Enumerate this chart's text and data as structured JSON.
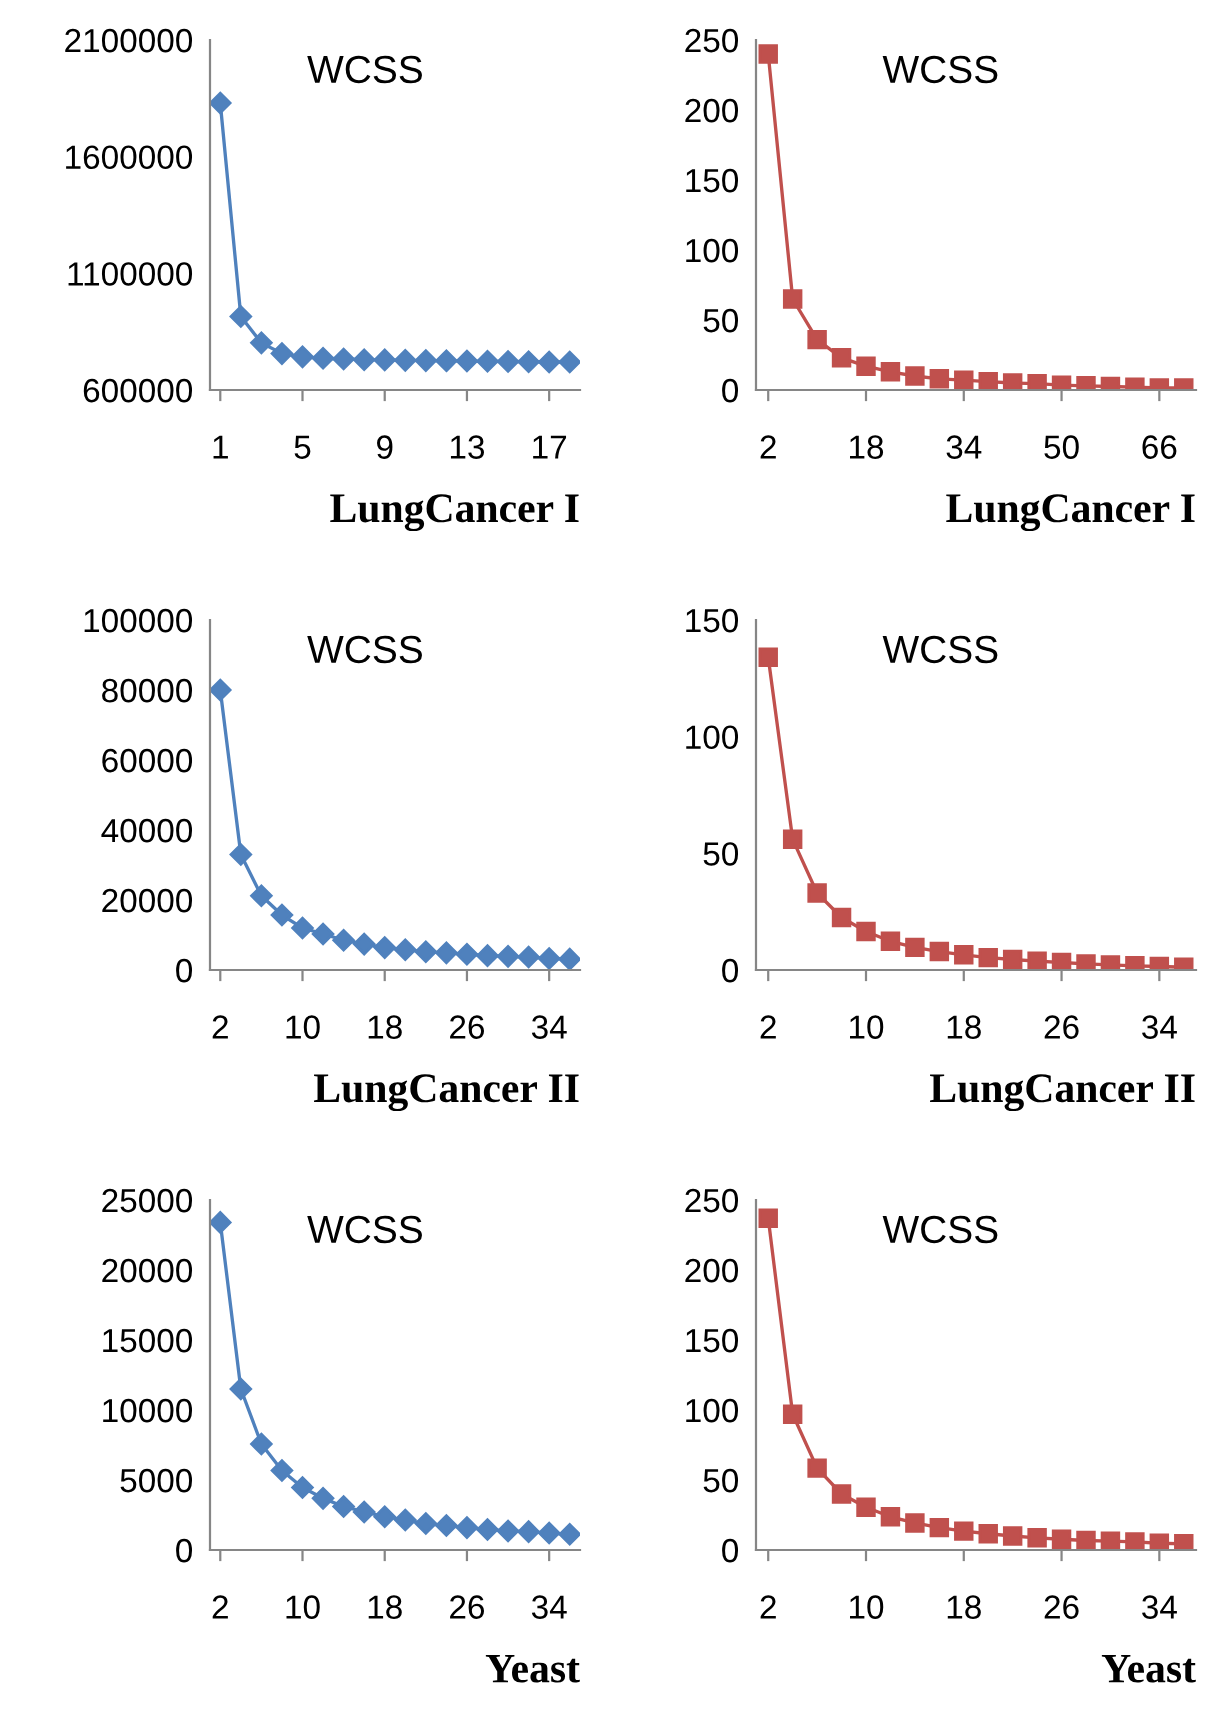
{
  "chart_data": [
    {
      "type": "line",
      "title": "WCSS",
      "xlabel": "LungCancer I",
      "categories": [
        "1",
        null,
        null,
        null,
        "5",
        null,
        null,
        null,
        "9",
        null,
        null,
        null,
        "13",
        null,
        null,
        null,
        "17",
        null
      ],
      "values": [
        1830000,
        915000,
        802000,
        756000,
        742000,
        736000,
        733000,
        730000,
        729000,
        727000,
        726000,
        725000,
        724000,
        723000,
        722000,
        721000,
        720000,
        720000
      ],
      "color": "#4f81bd",
      "marker": "diamond",
      "ylim": [
        600000,
        2100000
      ],
      "yticks": [
        600000,
        1100000,
        1600000,
        2100000
      ],
      "grid": false
    },
    {
      "type": "line",
      "title": "WCSS",
      "xlabel": "LungCancer I",
      "categories": [
        "2",
        null,
        null,
        null,
        "18",
        null,
        null,
        null,
        "34",
        null,
        null,
        null,
        "50",
        null,
        null,
        null,
        "66",
        null
      ],
      "values": [
        240,
        65,
        36,
        23,
        17,
        13,
        10,
        8,
        7,
        6,
        5,
        4.5,
        3.5,
        3,
        2.5,
        2,
        1.5,
        1.5
      ],
      "color": "#c0504d",
      "marker": "square",
      "ylim": [
        0,
        250
      ],
      "yticks": [
        0,
        50,
        100,
        150,
        200,
        250
      ],
      "grid": false
    },
    {
      "type": "line",
      "title": "WCSS",
      "xlabel": "LungCancer II",
      "categories": [
        "2",
        null,
        null,
        null,
        "10",
        null,
        null,
        null,
        "18",
        null,
        null,
        null,
        "26",
        null,
        null,
        null,
        "34",
        null
      ],
      "values": [
        80000,
        33000,
        21200,
        15700,
        12000,
        10300,
        8500,
        7400,
        6400,
        5800,
        5200,
        4900,
        4500,
        4100,
        3900,
        3700,
        3300,
        3100
      ],
      "color": "#4f81bd",
      "marker": "diamond",
      "ylim": [
        0,
        100000
      ],
      "yticks": [
        0,
        20000,
        40000,
        60000,
        80000,
        100000
      ],
      "grid": false
    },
    {
      "type": "line",
      "title": "WCSS",
      "xlabel": "LungCancer II",
      "categories": [
        "2",
        null,
        null,
        null,
        "10",
        null,
        null,
        null,
        "18",
        null,
        null,
        null,
        "26",
        null,
        null,
        null,
        "34",
        null
      ],
      "values": [
        134,
        56,
        33,
        22.5,
        16.5,
        12.3,
        9.7,
        7.9,
        6.5,
        5.3,
        4.5,
        3.8,
        3.2,
        2.6,
        2.2,
        1.8,
        1.5,
        1.2
      ],
      "color": "#c0504d",
      "marker": "square",
      "ylim": [
        0,
        150
      ],
      "yticks": [
        0,
        50,
        100,
        150
      ],
      "grid": false
    },
    {
      "type": "line",
      "title": "WCSS",
      "xlabel": "Yeast",
      "categories": [
        "2",
        null,
        null,
        null,
        "10",
        null,
        null,
        null,
        "18",
        null,
        null,
        null,
        "26",
        null,
        null,
        null,
        "34",
        null
      ],
      "values": [
        23400,
        11500,
        7570,
        5680,
        4470,
        3690,
        3110,
        2720,
        2380,
        2140,
        1890,
        1750,
        1600,
        1460,
        1360,
        1310,
        1210,
        1120
      ],
      "color": "#4f81bd",
      "marker": "diamond",
      "ylim": [
        0,
        25000
      ],
      "yticks": [
        0,
        5000,
        10000,
        15000,
        20000,
        25000
      ],
      "grid": false
    },
    {
      "type": "line",
      "title": "WCSS",
      "xlabel": "Yeast",
      "categories": [
        "2",
        null,
        null,
        null,
        "10",
        null,
        null,
        null,
        "18",
        null,
        null,
        null,
        "26",
        null,
        null,
        null,
        "34",
        null
      ],
      "values": [
        237,
        97,
        58.5,
        40,
        30.5,
        23.7,
        19.3,
        16,
        13.5,
        11.6,
        10,
        8.7,
        7.7,
        6.8,
        6.3,
        5.8,
        4.8,
        4.4
      ],
      "color": "#c0504d",
      "marker": "square",
      "ylim": [
        0,
        250
      ],
      "yticks": [
        0,
        50,
        100,
        150,
        200,
        250
      ],
      "grid": false
    }
  ]
}
